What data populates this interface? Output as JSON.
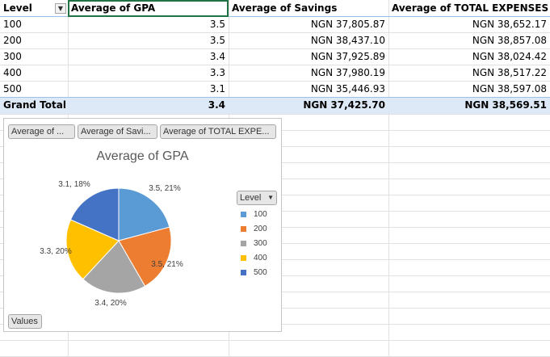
{
  "pivot": {
    "headers": [
      "Level",
      "Average of GPA",
      "Average of Savings",
      "Average of TOTAL EXPENSES"
    ],
    "rows": [
      {
        "level": "100",
        "gpa": "3.5",
        "savings": "NGN 37,805.87",
        "expenses": "NGN 38,652.17"
      },
      {
        "level": "200",
        "gpa": "3.5",
        "savings": "NGN 38,437.10",
        "expenses": "NGN 38,857.08"
      },
      {
        "level": "300",
        "gpa": "3.4",
        "savings": "NGN 37,925.89",
        "expenses": "NGN 38,024.42"
      },
      {
        "level": "400",
        "gpa": "3.3",
        "savings": "NGN 37,980.19",
        "expenses": "NGN 38,517.22"
      },
      {
        "level": "500",
        "gpa": "3.1",
        "savings": "NGN 35,446.93",
        "expenses": "NGN 38,597.08"
      }
    ],
    "grand_total": {
      "label": "Grand Total",
      "gpa": "3.4",
      "savings": "NGN 37,425.70",
      "expenses": "NGN 38,569.51"
    },
    "filter_icon": "filter-dropdown-icon"
  },
  "chart": {
    "field_buttons": [
      "Average of ...",
      "Average of Savi...",
      "Average of TOTAL EXPE..."
    ],
    "values_button": "Values",
    "legend_field": "Level",
    "legend_dropdown_icon": "chevron-down-icon"
  },
  "chart_data": {
    "type": "pie",
    "title": "Average of GPA",
    "categories": [
      "100",
      "200",
      "300",
      "400",
      "500"
    ],
    "values": [
      3.5,
      3.5,
      3.4,
      3.3,
      3.1
    ],
    "data_labels": [
      "3.5, 21%",
      "3.5, 21%",
      "3.4, 20%",
      "3.3, 20%",
      "3.1, 18%"
    ],
    "colors": [
      "#5b9bd5",
      "#ed7d31",
      "#a5a5a5",
      "#ffc000",
      "#4472c4"
    ],
    "legend_position": "right"
  }
}
